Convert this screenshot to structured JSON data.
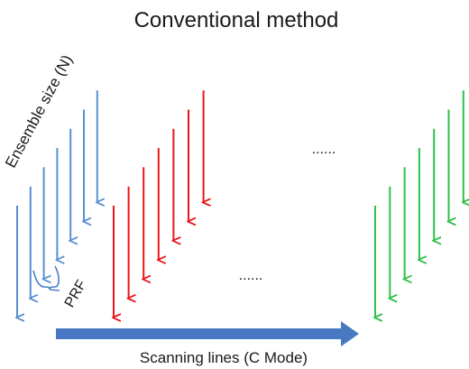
{
  "title": "Conventional method",
  "labels": {
    "ensemble": "Ensemble size (N)",
    "prf": "PRF",
    "scanning": "Scanning lines (C Mode)",
    "dots_upper": "......",
    "dots_lower": "......"
  },
  "colors": {
    "blue": "#5b8fd0",
    "red": "#e8161b",
    "green": "#2fbf4a",
    "bracket": "#4a7fc4",
    "scan_arrow": "#4978c2"
  },
  "groups": [
    {
      "name": "blue",
      "count": 7
    },
    {
      "name": "red",
      "count": 7
    },
    {
      "name": "green",
      "count": 7
    }
  ]
}
